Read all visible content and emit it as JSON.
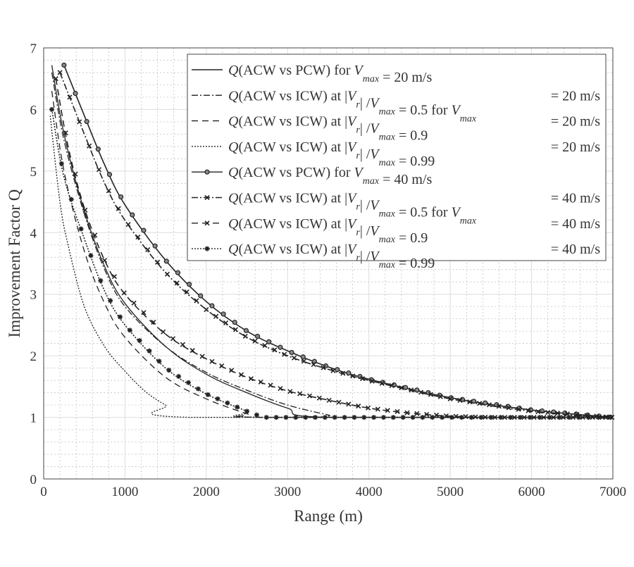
{
  "chart_data": {
    "type": "line",
    "title": "",
    "xlabel": "Range (m)",
    "ylabel": "Improvement Factor Q",
    "xlim": [
      0,
      7000
    ],
    "ylim": [
      0,
      7
    ],
    "xticks": [
      "0",
      "1000",
      "2000",
      "3000",
      "4000",
      "5000",
      "6000",
      "7000"
    ],
    "yticks": [
      "0",
      "1",
      "2",
      "3",
      "4",
      "5",
      "6",
      "7"
    ],
    "grid": "major and minor",
    "legend_position": "top-right",
    "series": [
      {
        "name": "Q(ACW vs PCW) for Vmax = 20 m/s",
        "style": "solid",
        "marker": "none",
        "legend": [
          {
            "t": "Q",
            "s": "i"
          },
          {
            "t": "(ACW vs PCW)  for ",
            "s": "n"
          },
          {
            "t": "V",
            "s": "i"
          },
          {
            "t": "max",
            "s": "sub"
          },
          {
            "t": " = 20 m/s",
            "s": "n"
          }
        ],
        "legend_right": "",
        "points": [
          [
            100,
            6.72
          ],
          [
            250,
            5.6
          ],
          [
            500,
            4.35
          ],
          [
            750,
            3.45
          ],
          [
            1000,
            2.85
          ],
          [
            1500,
            2.15
          ],
          [
            2000,
            1.7
          ],
          [
            2500,
            1.4
          ],
          [
            3000,
            1.15
          ],
          [
            3500,
            1.0
          ],
          [
            7000,
            1.0
          ]
        ]
      },
      {
        "name": "Q(ACW vs ICW) at |Vr|/Vmax = 0.5 for Vmax = 20 m/s",
        "style": "dashdot",
        "marker": "none",
        "legend": [
          {
            "t": "Q",
            "s": "i"
          },
          {
            "t": "(ACW vs ICW) at |",
            "s": "n"
          },
          {
            "t": "V",
            "s": "i"
          },
          {
            "t": "r",
            "s": "sub"
          },
          {
            "t": "| /",
            "s": "n"
          },
          {
            "t": "V",
            "s": "i"
          },
          {
            "t": "max",
            "s": "sub"
          },
          {
            "t": " = 0.5  for ",
            "s": "n"
          },
          {
            "t": "V",
            "s": "i"
          },
          {
            "t": "max",
            "s": "sub"
          }
        ],
        "legend_right": "= 20 m/s",
        "points": [
          [
            100,
            6.6
          ],
          [
            250,
            5.5
          ],
          [
            500,
            4.3
          ],
          [
            750,
            3.4
          ],
          [
            1000,
            2.8
          ],
          [
            1500,
            2.15
          ],
          [
            2000,
            1.73
          ],
          [
            2500,
            1.44
          ],
          [
            3000,
            1.2
          ],
          [
            3500,
            1.04
          ],
          [
            3700,
            1.0
          ],
          [
            7000,
            1.0
          ]
        ]
      },
      {
        "name": "Q(ACW vs ICW) at |Vr|/Vmax = 0.9 = 20 m/s",
        "style": "dashed",
        "marker": "none",
        "legend": [
          {
            "t": "Q",
            "s": "i"
          },
          {
            "t": "(ACW vs ICW) at |",
            "s": "n"
          },
          {
            "t": "V",
            "s": "i"
          },
          {
            "t": "r",
            "s": "sub"
          },
          {
            "t": "| /",
            "s": "n"
          },
          {
            "t": "V",
            "s": "i"
          },
          {
            "t": "max",
            "s": "sub"
          },
          {
            "t": " = 0.9",
            "s": "n"
          }
        ],
        "legend_right": "= 20 m/s",
        "points": [
          [
            100,
            6.3
          ],
          [
            250,
            5.0
          ],
          [
            500,
            3.7
          ],
          [
            750,
            2.85
          ],
          [
            1000,
            2.3
          ],
          [
            1500,
            1.65
          ],
          [
            2000,
            1.3
          ],
          [
            2500,
            1.06
          ],
          [
            2700,
            1.0
          ],
          [
            7000,
            1.0
          ]
        ]
      },
      {
        "name": "Q(ACW vs ICW) at |Vr|/Vmax = 0.99 = 20 m/s",
        "style": "dotted",
        "marker": "none",
        "legend": [
          {
            "t": "Q",
            "s": "i"
          },
          {
            "t": "(ACW vs ICW) at |",
            "s": "n"
          },
          {
            "t": "V",
            "s": "i"
          },
          {
            "t": "r",
            "s": "sub"
          },
          {
            "t": "| /",
            "s": "n"
          },
          {
            "t": "V",
            "s": "i"
          },
          {
            "t": "max",
            "s": "sub"
          },
          {
            "t": " = 0.99",
            "s": "n"
          }
        ],
        "legend_right": "= 20 m/s",
        "points": [
          [
            80,
            5.9
          ],
          [
            200,
            4.5
          ],
          [
            300,
            3.8
          ],
          [
            500,
            2.8
          ],
          [
            750,
            2.15
          ],
          [
            1000,
            1.75
          ],
          [
            1250,
            1.42
          ],
          [
            1500,
            1.2
          ],
          [
            1800,
            1.0
          ],
          [
            7000,
            1.0
          ]
        ]
      },
      {
        "name": "Q(ACW vs PCW) for Vmax = 40 m/s",
        "style": "solid",
        "marker": "circle",
        "legend": [
          {
            "t": "Q",
            "s": "i"
          },
          {
            "t": "(ACW vs PCW)  for ",
            "s": "n"
          },
          {
            "t": "V",
            "s": "i"
          },
          {
            "t": "max",
            "s": "sub"
          },
          {
            "t": " = 40 m/s",
            "s": "n"
          }
        ],
        "legend_right": "",
        "points": [
          [
            250,
            6.72
          ],
          [
            500,
            5.9
          ],
          [
            750,
            5.1
          ],
          [
            1000,
            4.45
          ],
          [
            1500,
            3.55
          ],
          [
            2000,
            2.88
          ],
          [
            2500,
            2.4
          ],
          [
            3000,
            2.08
          ],
          [
            3500,
            1.82
          ],
          [
            4000,
            1.62
          ],
          [
            5000,
            1.32
          ],
          [
            6000,
            1.12
          ],
          [
            7000,
            1.0
          ]
        ]
      },
      {
        "name": "Q(ACW vs ICW) at |Vr|/Vmax = 0.5 for Vmax = 40 m/s",
        "style": "dashdot",
        "marker": "x",
        "legend": [
          {
            "t": "Q",
            "s": "i"
          },
          {
            "t": "(ACW vs ICW) at |",
            "s": "n"
          },
          {
            "t": "V",
            "s": "i"
          },
          {
            "t": "r",
            "s": "sub"
          },
          {
            "t": "| /",
            "s": "n"
          },
          {
            "t": "V",
            "s": "i"
          },
          {
            "t": "max",
            "s": "sub"
          },
          {
            "t": " = 0.5  for ",
            "s": "n"
          },
          {
            "t": "V",
            "s": "i"
          },
          {
            "t": "max",
            "s": "sub"
          }
        ],
        "legend_right": "= 40 m/s",
        "points": [
          [
            200,
            6.6
          ],
          [
            500,
            5.6
          ],
          [
            750,
            4.8
          ],
          [
            1000,
            4.2
          ],
          [
            1500,
            3.35
          ],
          [
            2000,
            2.75
          ],
          [
            2500,
            2.3
          ],
          [
            3000,
            2.0
          ],
          [
            3500,
            1.78
          ],
          [
            4000,
            1.6
          ],
          [
            5000,
            1.3
          ],
          [
            6000,
            1.1
          ],
          [
            7000,
            1.0
          ]
        ]
      },
      {
        "name": "Q(ACW vs ICW) at |Vr|/Vmax = 0.9 = 40 m/s",
        "style": "dashed",
        "marker": "x",
        "legend": [
          {
            "t": "Q",
            "s": "i"
          },
          {
            "t": "(ACW vs ICW) at |",
            "s": "n"
          },
          {
            "t": "V",
            "s": "i"
          },
          {
            "t": "r",
            "s": "sub"
          },
          {
            "t": "| /",
            "s": "n"
          },
          {
            "t": "V",
            "s": "i"
          },
          {
            "t": "max",
            "s": "sub"
          },
          {
            "t": " = 0.9",
            "s": "n"
          }
        ],
        "legend_right": "= 40 m/s",
        "points": [
          [
            150,
            6.5
          ],
          [
            300,
            5.4
          ],
          [
            500,
            4.4
          ],
          [
            750,
            3.55
          ],
          [
            1000,
            3.0
          ],
          [
            1500,
            2.35
          ],
          [
            2000,
            1.95
          ],
          [
            2500,
            1.65
          ],
          [
            3000,
            1.43
          ],
          [
            3500,
            1.28
          ],
          [
            4000,
            1.15
          ],
          [
            4500,
            1.07
          ],
          [
            5000,
            1.02
          ],
          [
            5500,
            1.0
          ],
          [
            7000,
            1.0
          ]
        ]
      },
      {
        "name": "Q(ACW vs ICW) at |Vr|/Vmax = 0.99 = 40 m/s",
        "style": "dotted",
        "marker": "asterisk",
        "legend": [
          {
            "t": "Q",
            "s": "i"
          },
          {
            "t": "(ACW vs ICW) at |",
            "s": "n"
          },
          {
            "t": "V",
            "s": "i"
          },
          {
            "t": "r",
            "s": "sub"
          },
          {
            "t": "| /",
            "s": "n"
          },
          {
            "t": "V",
            "s": "i"
          },
          {
            "t": "max",
            "s": "sub"
          },
          {
            "t": " = 0.99",
            "s": "n"
          }
        ],
        "legend_right": "= 40 m/s",
        "points": [
          [
            100,
            6.0
          ],
          [
            250,
            4.9
          ],
          [
            500,
            3.9
          ],
          [
            750,
            3.05
          ],
          [
            1000,
            2.5
          ],
          [
            1500,
            1.8
          ],
          [
            2000,
            1.38
          ],
          [
            2500,
            1.1
          ],
          [
            2700,
            1.0
          ],
          [
            7000,
            1.0
          ]
        ]
      }
    ]
  }
}
